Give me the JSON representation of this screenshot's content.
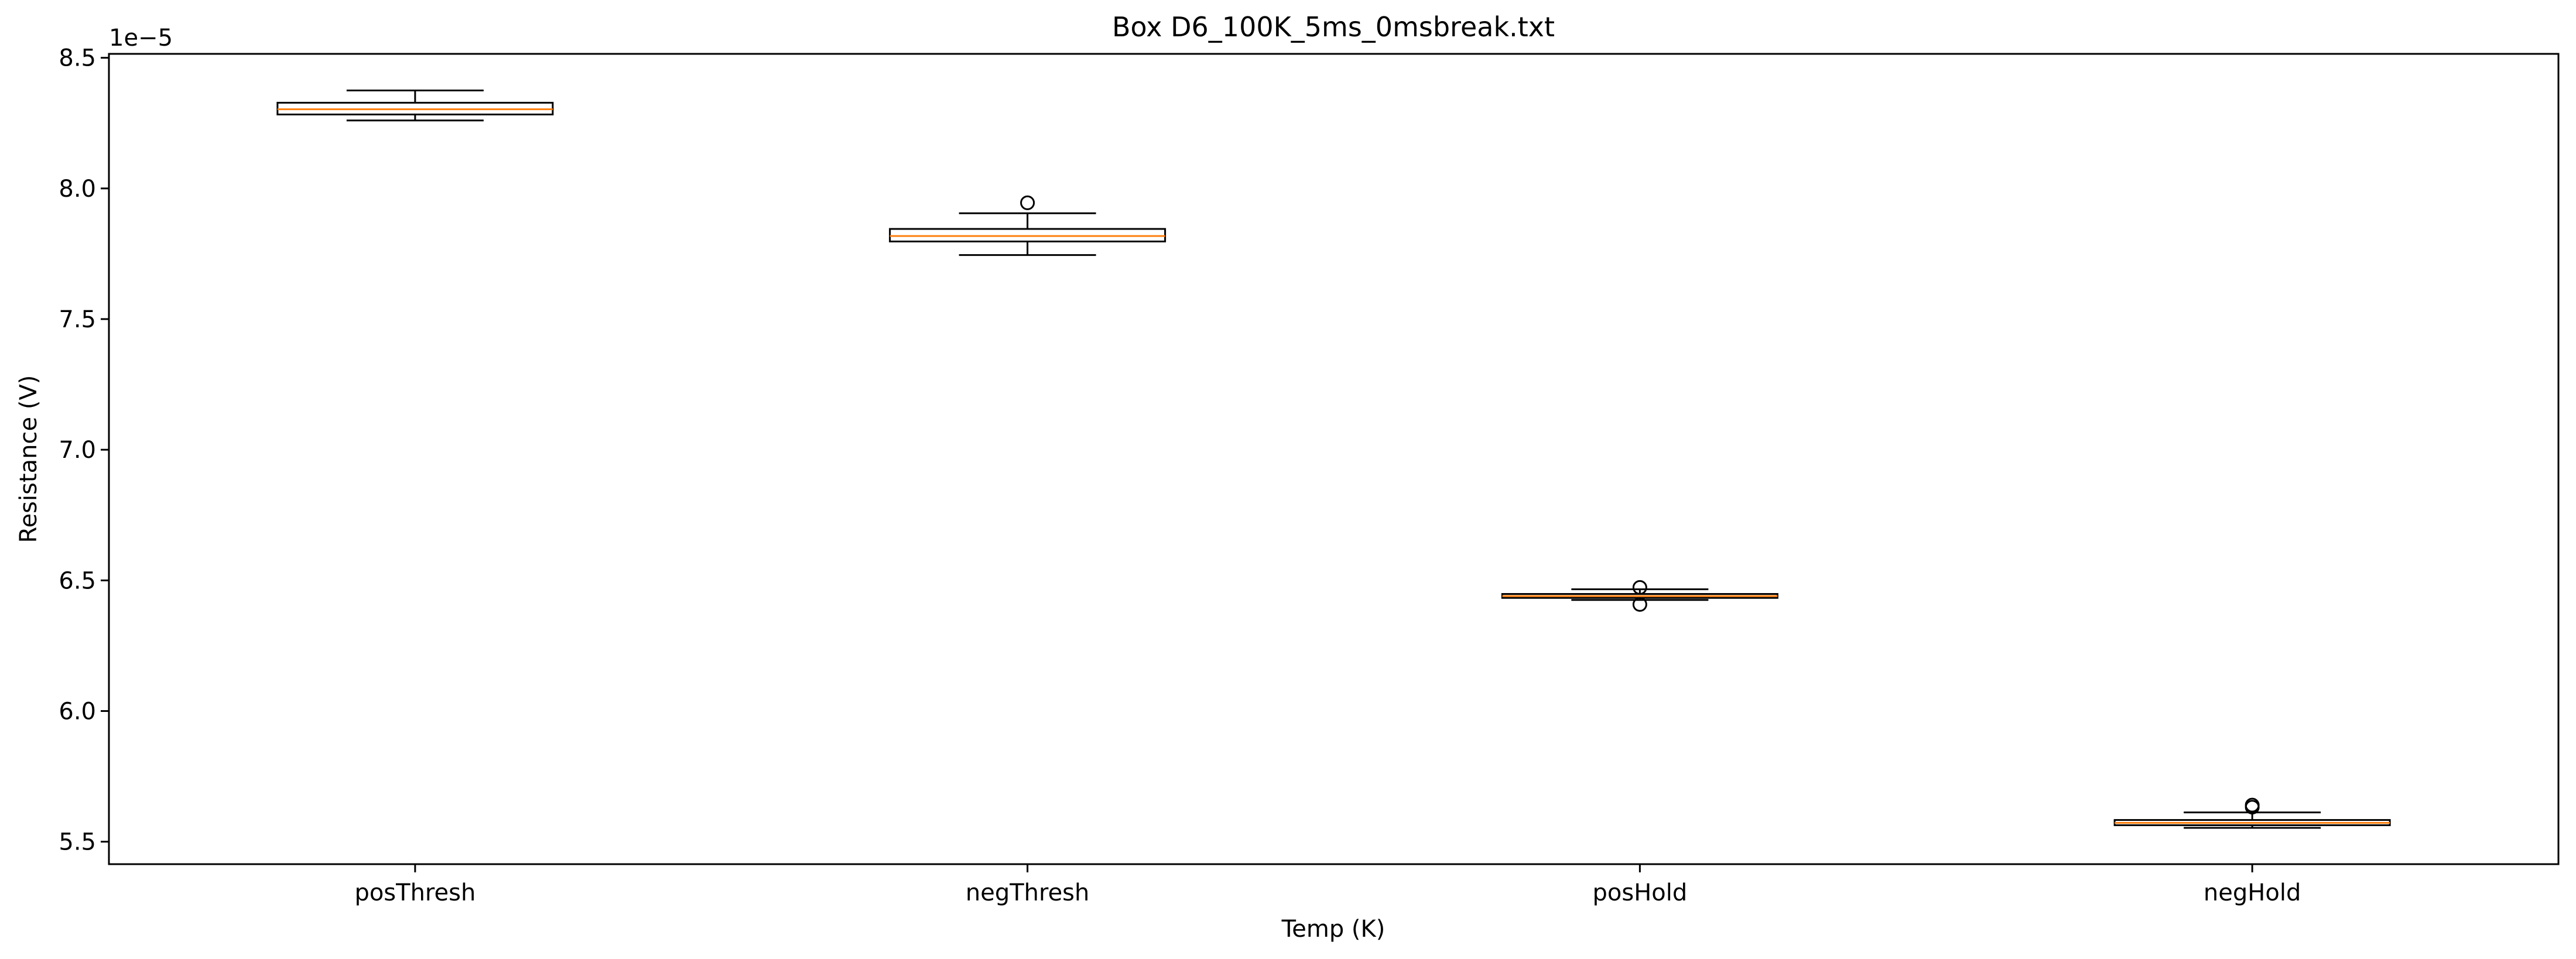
{
  "chart_data": {
    "type": "box",
    "title": "Box D6_100K_5ms_0msbreak.txt",
    "xlabel": "Temp (K)",
    "ylabel": "Resistance (V)",
    "y_offset_label": "1e−5",
    "y_scale_factor": 1e-05,
    "ylim": [
      5.414,
      8.515
    ],
    "yticks": [
      5.5,
      6.0,
      6.5,
      7.0,
      7.5,
      8.0,
      8.5
    ],
    "ytick_labels": [
      "5.5",
      "6.0",
      "6.5",
      "7.0",
      "7.5",
      "8.0",
      "8.5"
    ],
    "categories": [
      "posThresh",
      "negThresh",
      "posHold",
      "negHold"
    ],
    "boxes": [
      {
        "name": "posThresh",
        "whisker_low": 8.26,
        "q1": 8.283,
        "median": 8.303,
        "q3": 8.328,
        "whisker_high": 8.375,
        "outliers": []
      },
      {
        "name": "negThresh",
        "whisker_low": 7.745,
        "q1": 7.797,
        "median": 7.818,
        "q3": 7.845,
        "whisker_high": 7.905,
        "outliers": [
          7.945
        ]
      },
      {
        "name": "posHold",
        "whisker_low": 6.425,
        "q1": 6.433,
        "median": 6.44,
        "q3": 6.448,
        "whisker_high": 6.466,
        "outliers": [
          6.473,
          6.408
        ]
      },
      {
        "name": "negHold",
        "whisker_low": 5.553,
        "q1": 5.563,
        "median": 5.572,
        "q3": 5.583,
        "whisker_high": 5.612,
        "outliers": [
          5.632,
          5.64
        ]
      }
    ],
    "grid": false,
    "colors": {
      "box_edge": "#000000",
      "median": "#ff7f0e",
      "box_fill": "#ffffff"
    }
  }
}
